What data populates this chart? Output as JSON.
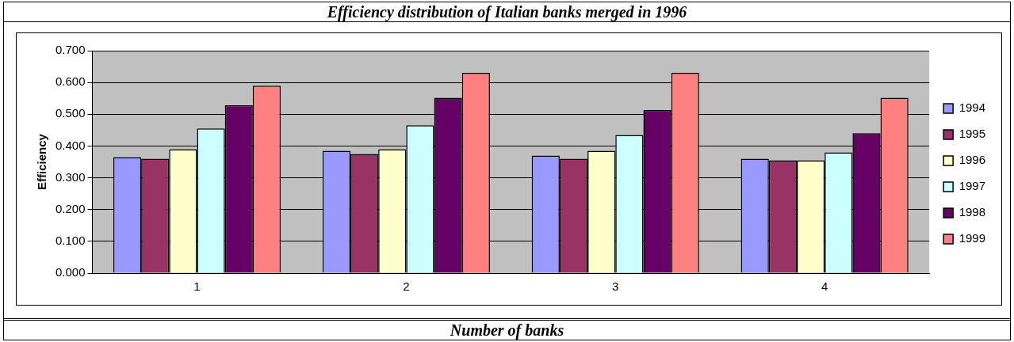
{
  "chart_data": {
    "type": "bar",
    "title": "Efficiency distribution of Italian banks merged in 1996",
    "xlabel": "Number of banks",
    "ylabel": "Efficiency",
    "categories": [
      "1",
      "2",
      "3",
      "4"
    ],
    "series": [
      {
        "name": "1994",
        "color": "#9999ff",
        "values": [
          0.365,
          0.385,
          0.37,
          0.36
        ]
      },
      {
        "name": "1995",
        "color": "#993366",
        "values": [
          0.36,
          0.375,
          0.36,
          0.355
        ]
      },
      {
        "name": "1996",
        "color": "#ffffcc",
        "values": [
          0.39,
          0.39,
          0.385,
          0.355
        ]
      },
      {
        "name": "1997",
        "color": "#ccffff",
        "values": [
          0.455,
          0.465,
          0.435,
          0.38
        ]
      },
      {
        "name": "1998",
        "color": "#660066",
        "values": [
          0.528,
          0.552,
          0.513,
          0.44
        ]
      },
      {
        "name": "1999",
        "color": "#ff8080",
        "values": [
          0.59,
          0.63,
          0.63,
          0.552
        ]
      }
    ],
    "ylim": [
      0,
      0.7
    ],
    "yticks": [
      {
        "value": 0,
        "label": "0.000"
      },
      {
        "value": 0.1,
        "label": "0.100"
      },
      {
        "value": 0.2,
        "label": "0.200"
      },
      {
        "value": 0.3,
        "label": "0.300"
      },
      {
        "value": 0.4,
        "label": "0.400"
      },
      {
        "value": 0.5,
        "label": "0.500"
      },
      {
        "value": 0.6,
        "label": "0.600"
      },
      {
        "value": 0.7,
        "label": "0.700"
      }
    ],
    "grid": "y",
    "legend": "right"
  }
}
